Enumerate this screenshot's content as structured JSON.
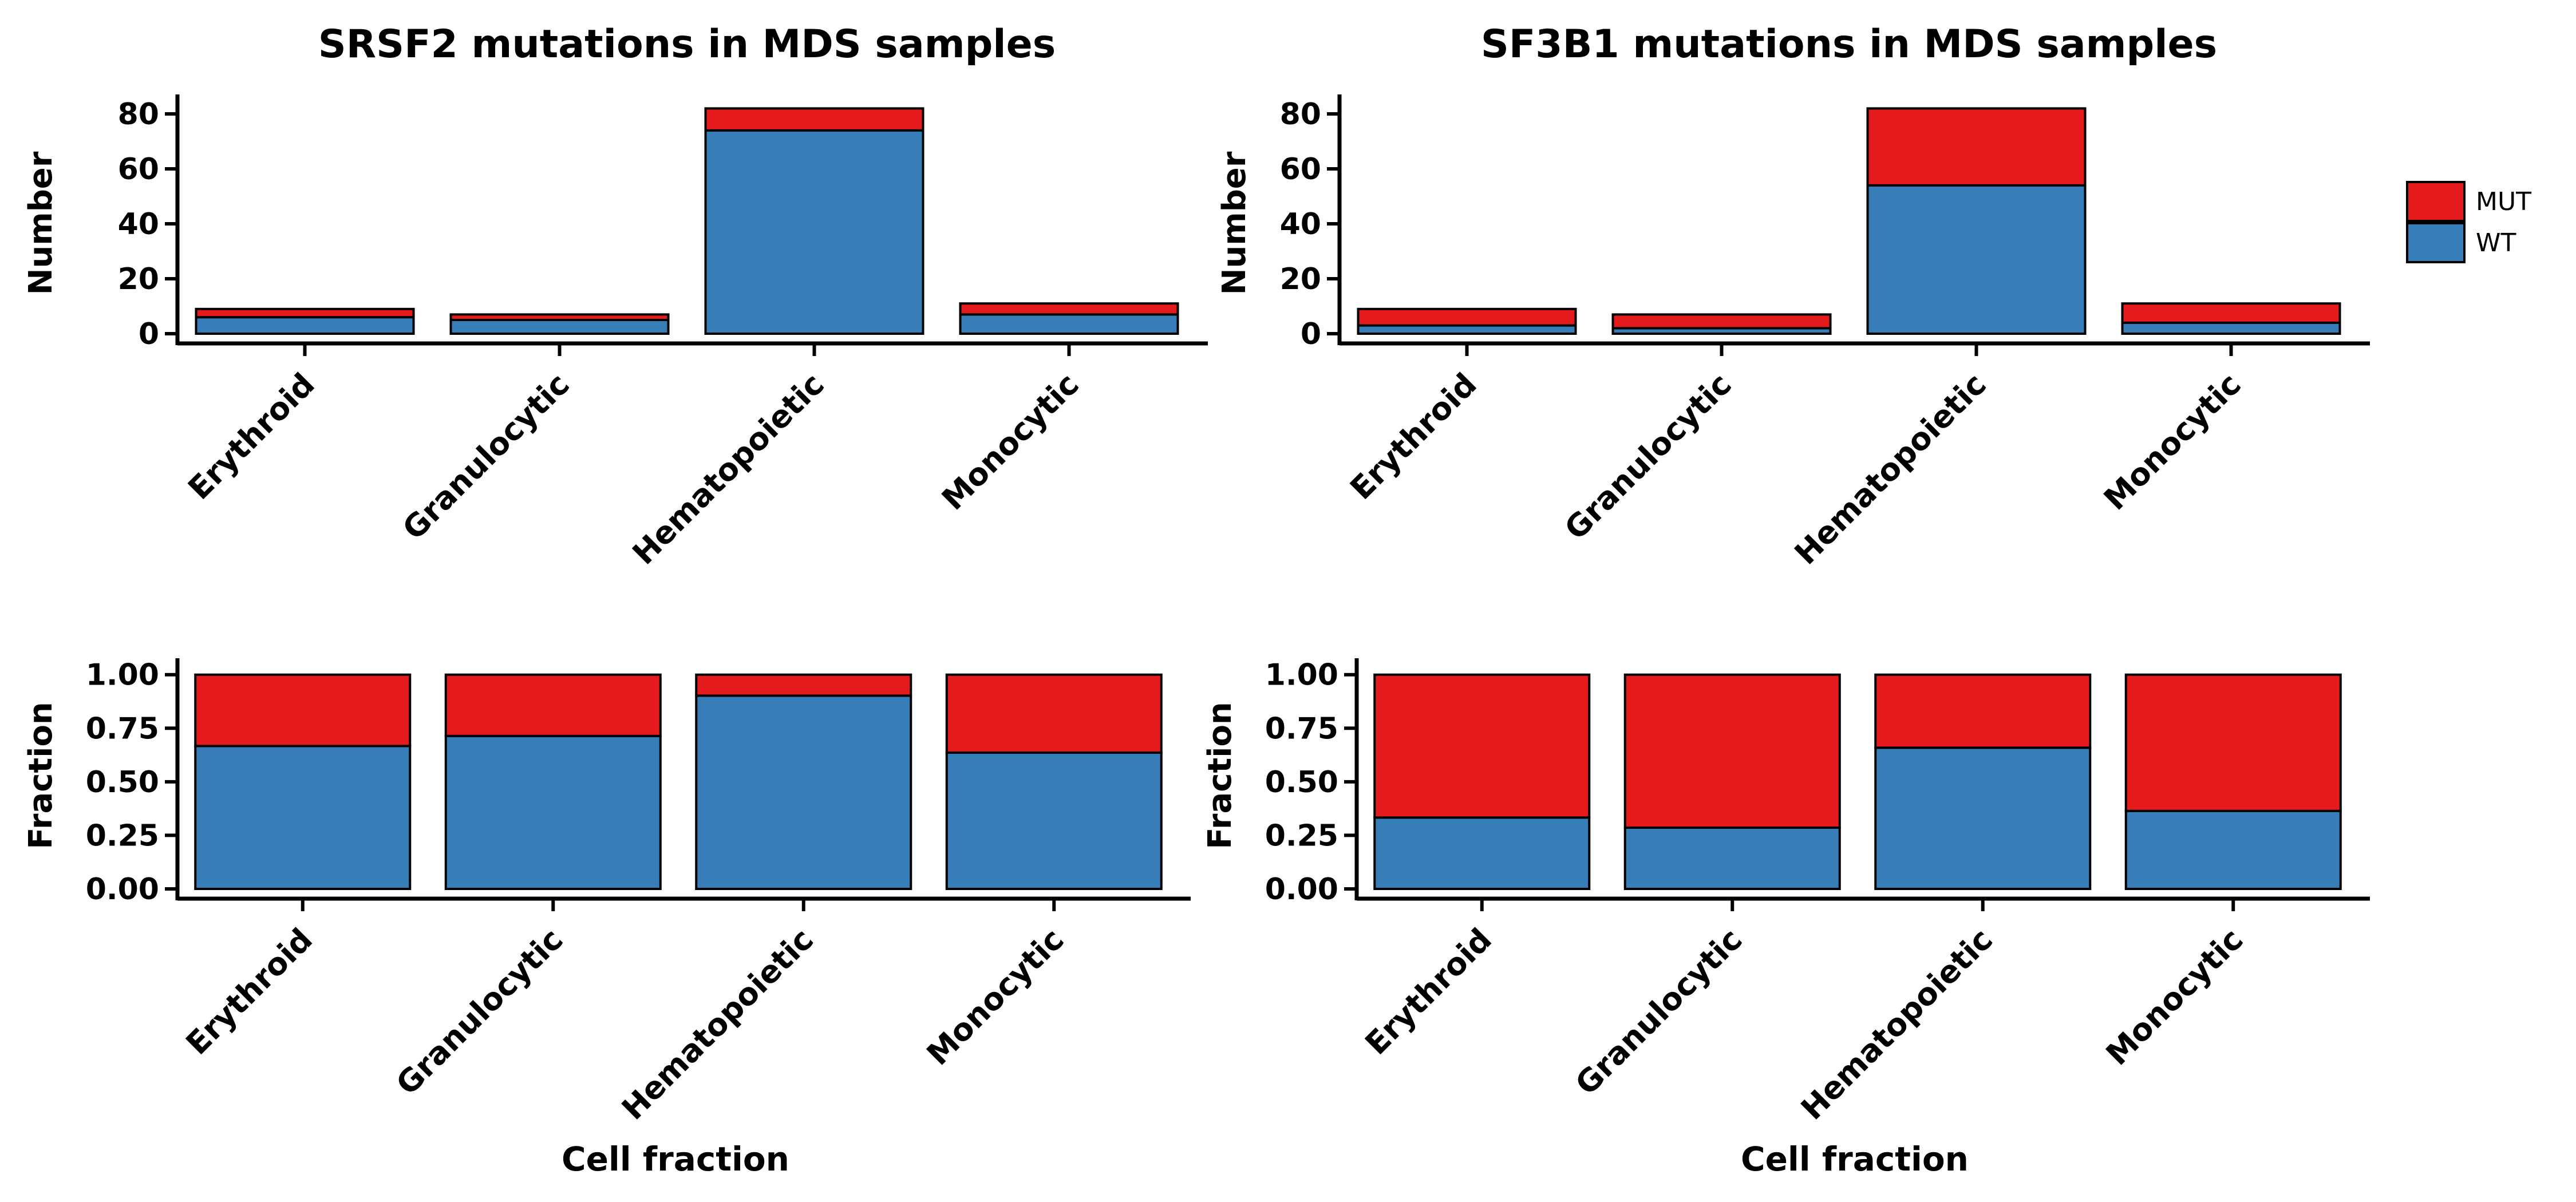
{
  "colors": {
    "MUT": "#e41a1c",
    "WT": "#377eb8",
    "axis": "#000000"
  },
  "legend": {
    "placement": "right",
    "items": [
      {
        "label": "MUT",
        "color": "#e41a1c"
      },
      {
        "label": "WT",
        "color": "#377eb8"
      }
    ]
  },
  "chart_data": [
    {
      "type": "bar",
      "stacked": true,
      "title": "SRSF2 mutations in MDS samples",
      "ylabel": "Number",
      "xlabel": "",
      "ylim": [
        0,
        85
      ],
      "yticks": [
        "0",
        "20",
        "40",
        "60",
        "80"
      ],
      "ytick_values": [
        0,
        20,
        40,
        60,
        80
      ],
      "categories": [
        "Erythroid",
        "Granulocytic",
        "Hematopoietic",
        "Monocytic"
      ],
      "series": [
        {
          "name": "WT",
          "values": [
            6,
            5,
            74,
            7
          ]
        },
        {
          "name": "MUT",
          "values": [
            3,
            2,
            8,
            4
          ]
        }
      ]
    },
    {
      "type": "bar",
      "stacked": true,
      "title": "SF3B1 mutations in  MDS samples",
      "ylabel": "Number",
      "xlabel": "",
      "ylim": [
        0,
        85
      ],
      "yticks": [
        "0",
        "20",
        "40",
        "60",
        "80"
      ],
      "ytick_values": [
        0,
        20,
        40,
        60,
        80
      ],
      "categories": [
        "Erythroid",
        "Granulocytic",
        "Hematopoietic",
        "Monocytic"
      ],
      "series": [
        {
          "name": "WT",
          "values": [
            3,
            2,
            54,
            4
          ]
        },
        {
          "name": "MUT",
          "values": [
            6,
            5,
            28,
            7
          ]
        }
      ]
    },
    {
      "type": "bar",
      "stacked": true,
      "title": "",
      "ylabel": "Fraction",
      "xlabel": "Cell fraction",
      "ylim": [
        0,
        1.05
      ],
      "yticks": [
        "0.00",
        "0.25",
        "0.50",
        "0.75",
        "1.00"
      ],
      "ytick_values": [
        0,
        0.25,
        0.5,
        0.75,
        1
      ],
      "categories": [
        "Erythroid",
        "Granulocytic",
        "Hematopoietic",
        "Monocytic"
      ],
      "series": [
        {
          "name": "WT",
          "values": [
            0.667,
            0.714,
            0.902,
            0.636
          ]
        },
        {
          "name": "MUT",
          "values": [
            0.333,
            0.286,
            0.098,
            0.364
          ]
        }
      ]
    },
    {
      "type": "bar",
      "stacked": true,
      "title": "",
      "ylabel": "Fraction",
      "xlabel": "Cell fraction",
      "ylim": [
        0,
        1.05
      ],
      "yticks": [
        "0.00",
        "0.25",
        "0.50",
        "0.75",
        "1.00"
      ],
      "ytick_values": [
        0,
        0.25,
        0.5,
        0.75,
        1
      ],
      "categories": [
        "Erythroid",
        "Granulocytic",
        "Hematopoietic",
        "Monocytic"
      ],
      "series": [
        {
          "name": "WT",
          "values": [
            0.333,
            0.286,
            0.659,
            0.364
          ]
        },
        {
          "name": "MUT",
          "values": [
            0.667,
            0.714,
            0.341,
            0.636
          ]
        }
      ]
    }
  ]
}
